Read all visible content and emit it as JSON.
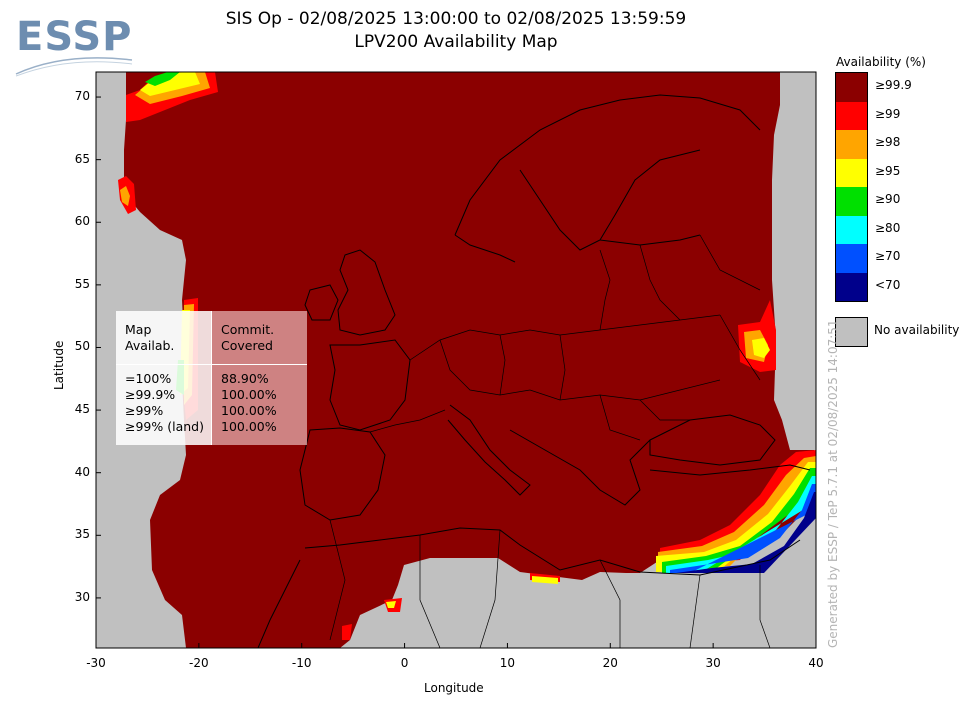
{
  "header": {
    "title_line1": "SIS Op - 02/08/2025 13:00:00 to 02/08/2025 13:59:59",
    "title_line2": "LPV200 Availability Map",
    "logo_text": "ESSP"
  },
  "axes": {
    "xlabel": "Longitude",
    "ylabel": "Latitude",
    "xlim": [
      -30,
      40
    ],
    "ylim": [
      26,
      72
    ],
    "x_ticks": [
      "-30",
      "-20",
      "-10",
      "0",
      "10",
      "20",
      "30",
      "40"
    ],
    "y_ticks": [
      "30",
      "35",
      "40",
      "45",
      "50",
      "55",
      "60",
      "65",
      "70"
    ]
  },
  "legend": {
    "title": "Availability (%)",
    "items": [
      {
        "label": "≥99.9",
        "color": "#8b0000"
      },
      {
        "label": "≥99",
        "color": "#ff0000"
      },
      {
        "label": "≥98",
        "color": "#ffa500"
      },
      {
        "label": "≥95",
        "color": "#ffff00"
      },
      {
        "label": "≥90",
        "color": "#00e000"
      },
      {
        "label": "≥80",
        "color": "#00ffff"
      },
      {
        "label": "≥70",
        "color": "#0050ff"
      },
      {
        "label": "<70",
        "color": "#00008b"
      }
    ],
    "no_availability_label": "No availability",
    "no_availability_color": "#c0c0c0"
  },
  "stats_table": {
    "header_col1": [
      "Map",
      "Availab."
    ],
    "header_col2": [
      "Commit.",
      "Covered"
    ],
    "rows": [
      {
        "label": "=100%",
        "value": "88.90%"
      },
      {
        "label": "≥99.9%",
        "value": "100.00%"
      },
      {
        "label": "≥99%",
        "value": "100.00%"
      },
      {
        "label": "≥99% (land)",
        "value": "100.00%"
      }
    ]
  },
  "footer": {
    "generated_by": "Generated by ESSP / TeP 5.7.1 at 02/08/2025 14:07:51"
  }
}
